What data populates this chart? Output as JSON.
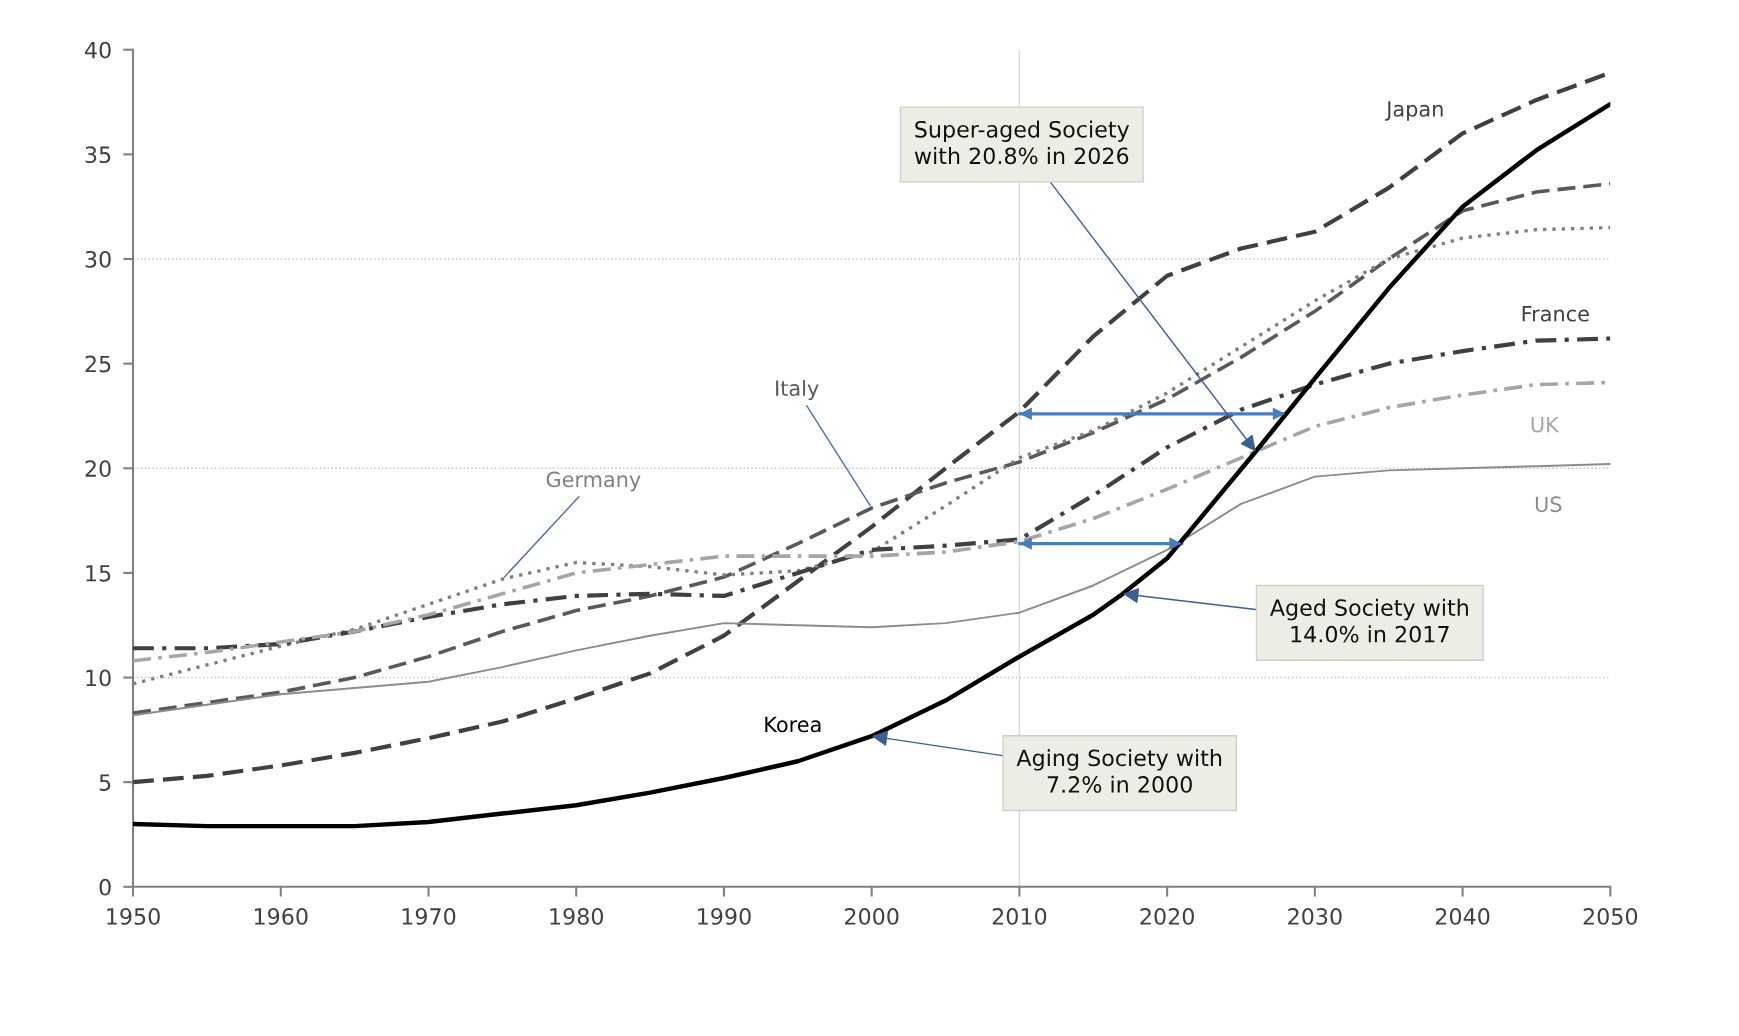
{
  "chart_data": {
    "type": "line",
    "x": [
      1950,
      1955,
      1960,
      1965,
      1970,
      1975,
      1980,
      1985,
      1990,
      1995,
      2000,
      2005,
      2010,
      2015,
      2020,
      2025,
      2030,
      2035,
      2040,
      2045,
      2050
    ],
    "series": [
      {
        "name": "Korea",
        "color": "#000000",
        "line_style": "solid",
        "x": [
          1950,
          1955,
          1960,
          1965,
          1970,
          1975,
          1980,
          1985,
          1990,
          1995,
          2000,
          2005,
          2010,
          2015,
          2017,
          2020,
          2026,
          2030,
          2035,
          2040,
          2045,
          2050
        ],
        "values": [
          3.0,
          2.9,
          2.9,
          2.9,
          3.1,
          3.5,
          3.9,
          4.5,
          5.2,
          6.0,
          7.2,
          8.9,
          11.0,
          13.0,
          14.0,
          15.7,
          20.8,
          24.3,
          28.6,
          32.5,
          35.2,
          37.4
        ]
      },
      {
        "name": "Japan",
        "color": "#404040",
        "line_style": "dashed",
        "values": [
          5.0,
          5.3,
          5.8,
          6.4,
          7.1,
          7.9,
          9.0,
          10.2,
          12.0,
          14.6,
          17.2,
          20.0,
          22.7,
          26.3,
          29.2,
          30.5,
          31.3,
          33.4,
          36.0,
          37.6,
          38.9
        ]
      },
      {
        "name": "Italy",
        "color": "#595959",
        "line_style": "dashed",
        "values": [
          8.3,
          8.8,
          9.3,
          10.0,
          11.0,
          12.2,
          13.2,
          13.9,
          14.8,
          16.4,
          18.1,
          19.3,
          20.3,
          21.7,
          23.3,
          25.3,
          27.5,
          30.0,
          32.3,
          33.2,
          33.6
        ]
      },
      {
        "name": "Germany",
        "color": "#7f7f7f",
        "line_style": "dotted",
        "values": [
          9.7,
          10.6,
          11.5,
          12.3,
          13.5,
          14.7,
          15.5,
          15.3,
          14.9,
          15.1,
          16.0,
          18.2,
          20.5,
          21.8,
          23.6,
          25.8,
          28.0,
          30.0,
          31.0,
          31.4,
          31.5
        ]
      },
      {
        "name": "France",
        "color": "#404040",
        "line_style": "dashdot",
        "values": [
          11.4,
          11.4,
          11.6,
          12.2,
          12.9,
          13.5,
          13.9,
          14.0,
          13.9,
          15.0,
          16.1,
          16.3,
          16.6,
          18.7,
          21.0,
          22.8,
          24.0,
          25.0,
          25.6,
          26.1,
          26.2
        ]
      },
      {
        "name": "UK",
        "color": "#a6a6a6",
        "line_style": "dashdot",
        "values": [
          10.8,
          11.2,
          11.7,
          12.2,
          13.0,
          14.0,
          15.0,
          15.4,
          15.8,
          15.8,
          15.8,
          16.0,
          16.5,
          17.6,
          19.0,
          20.5,
          22.0,
          22.9,
          23.5,
          24.0,
          24.1
        ]
      },
      {
        "name": "US",
        "color": "#8c8c8c",
        "line_style": "solid",
        "values": [
          8.2,
          8.7,
          9.2,
          9.5,
          9.8,
          10.5,
          11.3,
          12.0,
          12.6,
          12.5,
          12.4,
          12.6,
          13.1,
          14.4,
          16.1,
          18.3,
          19.6,
          19.9,
          20.0,
          20.1,
          20.2
        ]
      },
      {
        "color": "#4a7ebb",
        "line_style": "solid",
        "x": [
          2010,
          2028
        ],
        "values": [
          22.6,
          22.6
        ]
      },
      {
        "color": "#4a7ebb",
        "line_style": "solid",
        "x": [
          2010,
          2021
        ],
        "values": [
          16.4,
          16.4
        ]
      }
    ],
    "annotations": [
      {
        "text": "Super-aged Society\nwith 20.8% in 2026",
        "x": 2026,
        "y": 20.8
      },
      {
        "text": "Aged Society with\n14.0% in 2017",
        "x": 2017,
        "y": 14.0
      },
      {
        "text": "Aging Society with\n7.2% in 2000",
        "x": 2000,
        "y": 7.2
      }
    ],
    "ref_lines": [
      {
        "axis": "x",
        "value": 2010,
        "color": "#d9d9d9",
        "line_style": "solid"
      },
      {
        "axis": "y",
        "value": 10,
        "color": "#bfbfbf",
        "line_style": "dotted"
      },
      {
        "axis": "y",
        "value": 20,
        "color": "#bfbfbf",
        "line_style": "dotted"
      },
      {
        "axis": "y",
        "value": 30,
        "color": "#bfbfbf",
        "line_style": "dotted"
      }
    ],
    "xlim": [
      1950,
      2050
    ],
    "xticks": [
      1950,
      1960,
      1970,
      1980,
      1990,
      2000,
      2010,
      2020,
      2030,
      2040,
      2050
    ],
    "ylim": [
      0,
      40
    ],
    "yticks": [
      0,
      5,
      10,
      15,
      20,
      25,
      30,
      35,
      40
    ],
    "grid": false,
    "legend": false,
    "marker": "none"
  }
}
